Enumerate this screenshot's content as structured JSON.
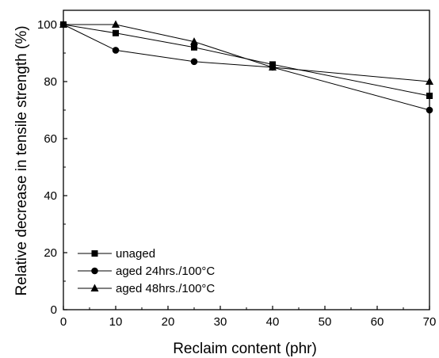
{
  "chart_data": {
    "type": "line",
    "xlabel": "Reclaim content (phr)",
    "ylabel": "Relative decrease in tensile strength (%)",
    "xlim": [
      0,
      70
    ],
    "ylim": [
      0,
      105
    ],
    "xticks": [
      0,
      10,
      20,
      30,
      40,
      50,
      60,
      70
    ],
    "yticks": [
      0,
      20,
      40,
      60,
      80,
      100
    ],
    "x": [
      0,
      10,
      25,
      40,
      70
    ],
    "grid": false,
    "legend_position": "bottom-left",
    "series": [
      {
        "name": "unaged",
        "marker": "square",
        "values": [
          100,
          97,
          92,
          86,
          75
        ]
      },
      {
        "name": "aged 24hrs./100°C",
        "marker": "circle",
        "values": [
          100,
          91,
          87,
          85,
          70
        ]
      },
      {
        "name": "aged 48hrs./100°C",
        "marker": "triangle",
        "values": [
          100,
          100,
          94,
          85,
          80
        ]
      }
    ]
  }
}
